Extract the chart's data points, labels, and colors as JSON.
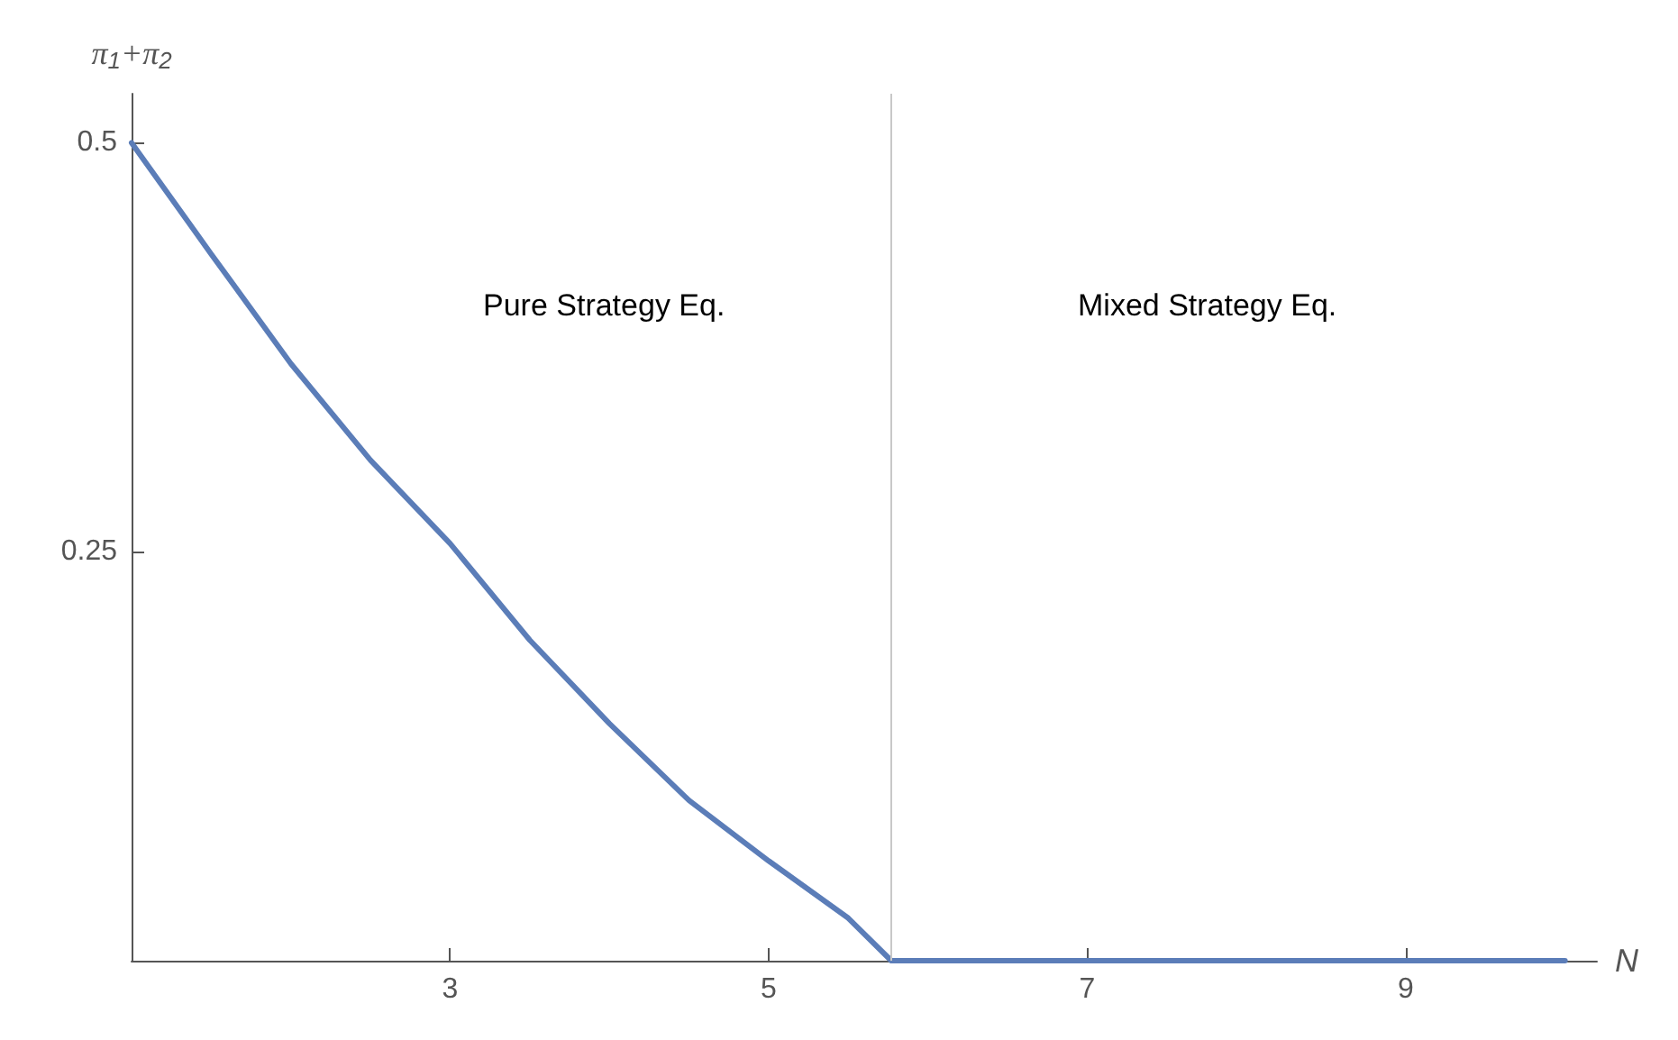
{
  "chart_data": {
    "type": "line",
    "xlabel": "N",
    "ylabel": "π$_{1}$+π$_{2}$",
    "x": [
      1,
      1.5,
      2,
      2.5,
      3,
      3.5,
      4,
      4.5,
      5,
      5.5,
      5.77,
      6,
      7,
      8,
      9,
      10
    ],
    "series": [
      {
        "color": "#5b7db8",
        "values": [
          0.5,
          0.432,
          0.365,
          0.306,
          0.255,
          0.196,
          0.145,
          0.098,
          0.061,
          0.026,
          0,
          0,
          0,
          0,
          0,
          0
        ]
      }
    ],
    "xlim": [
      1,
      10.2
    ],
    "ylim": [
      0,
      0.53
    ],
    "xticks": [
      3,
      5,
      7,
      9
    ],
    "yticks": [
      0.25,
      0.5
    ],
    "ref_lines": [
      {
        "axis": "x",
        "value": 5.77,
        "color": "#c8c8c8"
      }
    ],
    "annotations": [
      "Pure Strategy Eq.",
      "Mixed Strategy Eq."
    ],
    "grid": false,
    "marker": "none",
    "line_style": "solid"
  }
}
